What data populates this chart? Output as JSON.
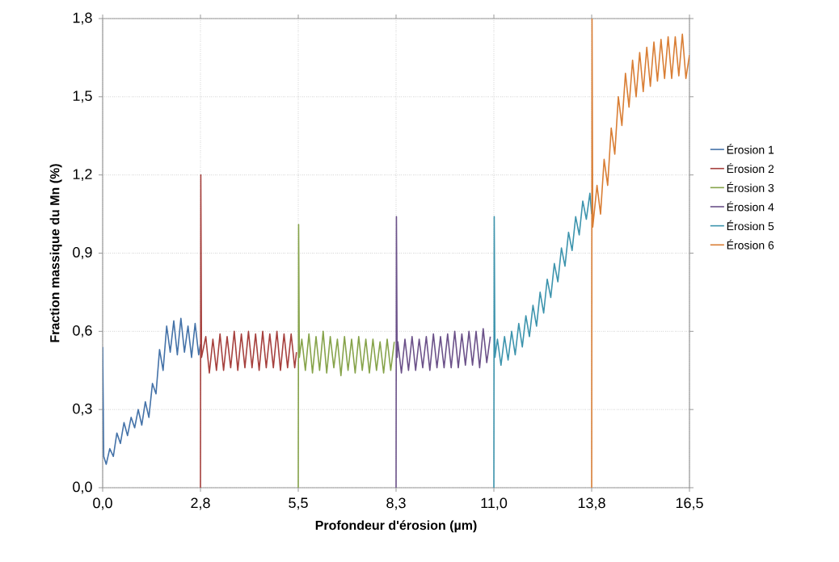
{
  "chart_data": {
    "type": "line",
    "xlabel": "Profondeur d'érosion (µm)",
    "ylabel": "Fraction massique du Mn (%)",
    "xlim": [
      0,
      16.5
    ],
    "ylim": [
      0,
      1.8
    ],
    "xticks": [
      {
        "value": 0,
        "label": "0,0"
      },
      {
        "value": 2.75,
        "label": "2,8"
      },
      {
        "value": 5.5,
        "label": "5,5"
      },
      {
        "value": 8.25,
        "label": "8,3"
      },
      {
        "value": 11,
        "label": "11,0"
      },
      {
        "value": 13.75,
        "label": "13,8"
      },
      {
        "value": 16.5,
        "label": "16,5"
      }
    ],
    "yticks": [
      {
        "value": 0,
        "label": "0,0"
      },
      {
        "value": 0.3,
        "label": "0,3"
      },
      {
        "value": 0.6,
        "label": "0,6"
      },
      {
        "value": 0.9,
        "label": "0,9"
      },
      {
        "value": 1.2,
        "label": "1,2"
      },
      {
        "value": 1.5,
        "label": "1,5"
      },
      {
        "value": 1.8,
        "label": "1,8"
      }
    ],
    "grid": true,
    "legend": "right",
    "marker": "none",
    "line_style": "solid",
    "series": [
      {
        "name": "Érosion 1",
        "color": "#4472a8",
        "x": [
          0,
          0.03,
          0.1,
          0.2,
          0.3,
          0.4,
          0.5,
          0.6,
          0.7,
          0.8,
          0.9,
          1.0,
          1.1,
          1.2,
          1.3,
          1.4,
          1.5,
          1.6,
          1.7,
          1.8,
          1.9,
          2.0,
          2.1,
          2.2,
          2.3,
          2.4,
          2.5,
          2.6,
          2.7,
          2.75
        ],
        "values": [
          0.54,
          0.12,
          0.09,
          0.15,
          0.12,
          0.21,
          0.17,
          0.25,
          0.2,
          0.27,
          0.23,
          0.3,
          0.24,
          0.33,
          0.27,
          0.4,
          0.36,
          0.53,
          0.45,
          0.62,
          0.52,
          0.64,
          0.51,
          0.65,
          0.52,
          0.62,
          0.5,
          0.63,
          0.51,
          0.55
        ]
      },
      {
        "name": "Érosion 2",
        "color": "#a6403d",
        "x": [
          2.75,
          2.76,
          2.78,
          2.9,
          3.0,
          3.1,
          3.2,
          3.3,
          3.4,
          3.5,
          3.6,
          3.7,
          3.8,
          3.9,
          4.0,
          4.1,
          4.2,
          4.3,
          4.4,
          4.5,
          4.6,
          4.7,
          4.8,
          4.9,
          5.0,
          5.1,
          5.2,
          5.3,
          5.4,
          5.45
        ],
        "values": [
          0.0,
          1.2,
          0.5,
          0.58,
          0.44,
          0.57,
          0.45,
          0.59,
          0.45,
          0.58,
          0.46,
          0.6,
          0.45,
          0.59,
          0.46,
          0.6,
          0.46,
          0.59,
          0.45,
          0.6,
          0.46,
          0.59,
          0.46,
          0.6,
          0.45,
          0.59,
          0.46,
          0.59,
          0.46,
          0.52
        ]
      },
      {
        "name": "Érosion 3",
        "color": "#86a34a",
        "x": [
          5.5,
          5.51,
          5.53,
          5.6,
          5.7,
          5.8,
          5.9,
          6.0,
          6.1,
          6.2,
          6.3,
          6.4,
          6.5,
          6.6,
          6.7,
          6.8,
          6.9,
          7.0,
          7.1,
          7.2,
          7.3,
          7.4,
          7.5,
          7.6,
          7.7,
          7.8,
          7.9,
          8.0,
          8.1,
          8.2
        ],
        "values": [
          0.0,
          1.01,
          0.5,
          0.57,
          0.45,
          0.59,
          0.44,
          0.58,
          0.45,
          0.6,
          0.44,
          0.58,
          0.46,
          0.57,
          0.43,
          0.58,
          0.45,
          0.57,
          0.44,
          0.58,
          0.45,
          0.57,
          0.44,
          0.57,
          0.45,
          0.56,
          0.44,
          0.57,
          0.45,
          0.56
        ]
      },
      {
        "name": "Érosion 4",
        "color": "#6b5189",
        "x": [
          8.25,
          8.26,
          8.28,
          8.3,
          8.4,
          8.5,
          8.6,
          8.7,
          8.8,
          8.9,
          9.0,
          9.1,
          9.2,
          9.3,
          9.4,
          9.5,
          9.6,
          9.7,
          9.8,
          9.9,
          10.0,
          10.1,
          10.2,
          10.3,
          10.4,
          10.5,
          10.6,
          10.7,
          10.8,
          10.9
        ],
        "values": [
          0.0,
          1.04,
          0.5,
          0.56,
          0.44,
          0.57,
          0.45,
          0.58,
          0.45,
          0.57,
          0.46,
          0.58,
          0.45,
          0.59,
          0.46,
          0.58,
          0.46,
          0.59,
          0.46,
          0.6,
          0.46,
          0.59,
          0.47,
          0.6,
          0.47,
          0.6,
          0.46,
          0.61,
          0.48,
          0.58
        ]
      },
      {
        "name": "Érosion 5",
        "color": "#3d94ad",
        "x": [
          11.0,
          11.01,
          11.03,
          11.1,
          11.2,
          11.3,
          11.4,
          11.5,
          11.6,
          11.7,
          11.8,
          11.9,
          12.0,
          12.1,
          12.2,
          12.3,
          12.4,
          12.5,
          12.6,
          12.7,
          12.8,
          12.9,
          13.0,
          13.1,
          13.2,
          13.3,
          13.4,
          13.5,
          13.6,
          13.7,
          13.75
        ],
        "values": [
          0.0,
          1.04,
          0.5,
          0.57,
          0.47,
          0.58,
          0.49,
          0.6,
          0.51,
          0.63,
          0.54,
          0.66,
          0.58,
          0.7,
          0.62,
          0.75,
          0.67,
          0.8,
          0.73,
          0.86,
          0.79,
          0.92,
          0.85,
          0.98,
          0.91,
          1.04,
          0.97,
          1.1,
          1.03,
          1.13,
          1.05
        ]
      },
      {
        "name": "Érosion 6",
        "color": "#d97e35",
        "x": [
          13.75,
          13.76,
          13.78,
          13.9,
          14.0,
          14.1,
          14.2,
          14.3,
          14.4,
          14.5,
          14.6,
          14.7,
          14.8,
          14.9,
          15.0,
          15.1,
          15.2,
          15.3,
          15.4,
          15.5,
          15.6,
          15.7,
          15.8,
          15.9,
          16.0,
          16.1,
          16.2,
          16.3,
          16.4,
          16.5
        ],
        "values": [
          0.0,
          1.8,
          1.0,
          1.16,
          1.05,
          1.26,
          1.16,
          1.38,
          1.28,
          1.5,
          1.39,
          1.59,
          1.46,
          1.64,
          1.5,
          1.67,
          1.52,
          1.69,
          1.54,
          1.71,
          1.56,
          1.72,
          1.57,
          1.73,
          1.57,
          1.73,
          1.58,
          1.74,
          1.57,
          1.66
        ]
      }
    ]
  }
}
